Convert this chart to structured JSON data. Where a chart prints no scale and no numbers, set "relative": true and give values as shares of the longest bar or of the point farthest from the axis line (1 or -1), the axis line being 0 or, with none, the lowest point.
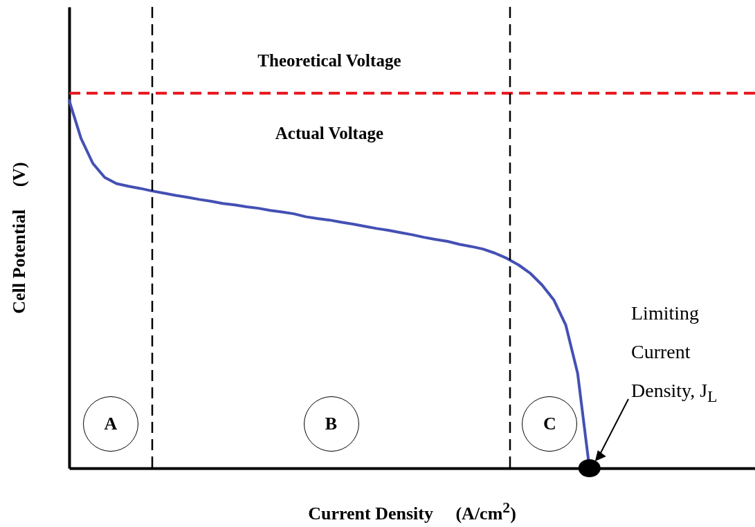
{
  "chart_data": {
    "type": "line",
    "relative": true,
    "xlabel": "Current Density     (A/cm$^{2}$)",
    "ylabel": "Cell Potential     (V)",
    "categories": [
      null,
      null,
      null,
      null,
      null,
      null,
      null,
      null,
      null,
      null,
      null,
      null,
      null,
      null,
      null,
      null,
      null,
      null,
      null,
      null,
      null,
      null,
      null,
      null,
      null,
      null,
      null,
      null,
      null,
      null,
      null,
      null,
      null,
      null,
      null,
      null,
      null,
      null,
      null,
      null,
      null,
      null,
      null,
      null,
      null,
      null,
      null,
      null,
      null,
      null,
      null,
      null,
      null,
      null,
      null,
      null,
      null,
      null,
      null
    ],
    "series": [
      {
        "name": "Actual Voltage",
        "color": "#4450b4",
        "values": [
          1.0,
          0.897,
          0.829,
          0.791,
          0.774,
          0.767,
          0.761,
          0.754,
          0.748,
          0.742,
          0.737,
          0.731,
          0.726,
          0.72,
          0.716,
          0.711,
          0.707,
          0.701,
          0.697,
          0.692,
          0.684,
          0.679,
          0.675,
          0.669,
          0.664,
          0.658,
          0.652,
          0.647,
          0.641,
          0.635,
          0.628,
          0.622,
          0.617,
          0.609,
          0.603,
          0.596,
          0.585,
          0.571,
          0.553,
          0.53,
          0.498,
          0.457,
          0.389,
          0.258,
          0,
          null,
          null,
          null,
          null,
          null,
          null,
          null,
          null,
          null,
          null,
          null,
          null,
          null,
          null
        ]
      }
    ],
    "ref_lines": [
      {
        "axis": "y",
        "value": 1.02,
        "label": "Theoretical Voltage",
        "color": "#e8141b",
        "line_style": "dashed"
      }
    ],
    "annotations": [
      "A",
      "B",
      "C",
      "Limiting Current Density, J$_{L}$"
    ],
    "grid": false
  }
}
